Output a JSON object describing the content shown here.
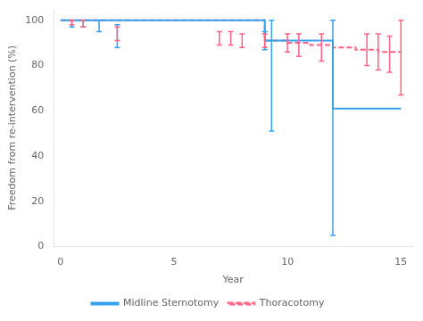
{
  "chart_data": {
    "type": "line",
    "xlabel": "Year",
    "ylabel": "Freedom from re-intervention (%)",
    "xlim": [
      -0.3,
      15.5
    ],
    "xticks": [
      0,
      5,
      10,
      15
    ],
    "ylim": [
      0,
      105
    ],
    "yticks": [
      0,
      20,
      40,
      60,
      80,
      100
    ],
    "grid": false,
    "legend": "bottom",
    "series": [
      {
        "name": "Midline Sternotomy",
        "line_style": "solid",
        "x": [
          0,
          9,
          9,
          12,
          12,
          15
        ],
        "values": [
          100,
          100,
          91,
          91,
          61,
          61
        ],
        "error_bars": [
          {
            "x": 0.5,
            "y": 100,
            "lo": 97,
            "hi": 100
          },
          {
            "x": 1.0,
            "y": 100,
            "lo": 97,
            "hi": 100
          },
          {
            "x": 1.7,
            "y": 100,
            "lo": 95,
            "hi": 100
          },
          {
            "x": 2.5,
            "y": 93,
            "lo": 88,
            "hi": 98
          },
          {
            "x": 9.0,
            "y": 91,
            "lo": 87,
            "hi": 95
          },
          {
            "x": 9.3,
            "y": 91,
            "lo": 51,
            "hi": 100
          },
          {
            "x": 12.0,
            "y": 61,
            "lo": 5,
            "hi": 100
          }
        ]
      },
      {
        "name": "Thoracotomy",
        "line_style": "dashed",
        "x": [
          0,
          9,
          9,
          10,
          10,
          11,
          11,
          12,
          12,
          13,
          13,
          14,
          14,
          15
        ],
        "values": [
          100,
          100,
          91,
          91,
          90,
          90,
          89,
          89,
          88,
          88,
          87,
          87,
          86,
          86
        ],
        "error_bars": [
          {
            "x": 0.5,
            "y": 100,
            "lo": 98,
            "hi": 100
          },
          {
            "x": 1.0,
            "y": 100,
            "lo": 97,
            "hi": 100
          },
          {
            "x": 2.5,
            "y": 94,
            "lo": 91,
            "hi": 97
          },
          {
            "x": 7.0,
            "y": 92,
            "lo": 89,
            "hi": 95
          },
          {
            "x": 7.5,
            "y": 92,
            "lo": 89,
            "hi": 95
          },
          {
            "x": 8.0,
            "y": 91,
            "lo": 88,
            "hi": 94
          },
          {
            "x": 9.0,
            "y": 91,
            "lo": 88,
            "hi": 94
          },
          {
            "x": 10.0,
            "y": 90,
            "lo": 86,
            "hi": 94
          },
          {
            "x": 10.5,
            "y": 89,
            "lo": 84,
            "hi": 94
          },
          {
            "x": 11.5,
            "y": 88,
            "lo": 82,
            "hi": 94
          },
          {
            "x": 13.5,
            "y": 87,
            "lo": 80,
            "hi": 94
          },
          {
            "x": 14.0,
            "y": 86,
            "lo": 78,
            "hi": 94
          },
          {
            "x": 14.5,
            "y": 85,
            "lo": 77,
            "hi": 93
          },
          {
            "x": 15.0,
            "y": 85,
            "lo": 67,
            "hi": 100
          }
        ]
      }
    ]
  }
}
